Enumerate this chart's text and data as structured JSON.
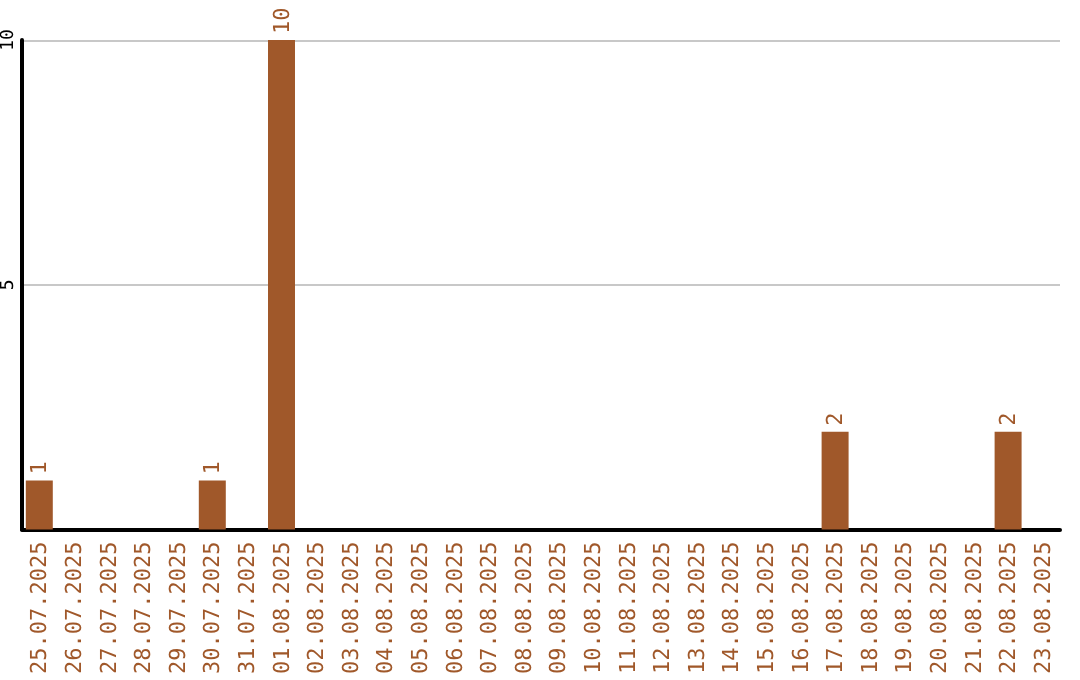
{
  "chart_data": {
    "type": "bar",
    "categories": [
      "25.07.2025",
      "26.07.2025",
      "27.07.2025",
      "28.07.2025",
      "29.07.2025",
      "30.07.2025",
      "31.07.2025",
      "01.08.2025",
      "02.08.2025",
      "03.08.2025",
      "04.08.2025",
      "05.08.2025",
      "06.08.2025",
      "07.08.2025",
      "08.08.2025",
      "09.08.2025",
      "10.08.2025",
      "11.08.2025",
      "12.08.2025",
      "13.08.2025",
      "14.08.2025",
      "15.08.2025",
      "16.08.2025",
      "17.08.2025",
      "18.08.2025",
      "19.08.2025",
      "20.08.2025",
      "21.08.2025",
      "22.08.2025",
      "23.08.2025"
    ],
    "values": [
      1,
      0,
      0,
      0,
      0,
      1,
      0,
      10,
      0,
      0,
      0,
      0,
      0,
      0,
      0,
      0,
      0,
      0,
      0,
      0,
      0,
      0,
      0,
      2,
      0,
      0,
      0,
      0,
      2,
      0
    ],
    "value_labels": [
      "1",
      null,
      null,
      null,
      null,
      "1",
      null,
      "10",
      null,
      null,
      null,
      null,
      null,
      null,
      null,
      null,
      null,
      null,
      null,
      null,
      null,
      null,
      null,
      "2",
      null,
      null,
      null,
      null,
      "2",
      null
    ],
    "color": "#a0582a",
    "ylim": [
      0,
      10
    ],
    "yticks": [
      5,
      10
    ],
    "grid": "y"
  }
}
